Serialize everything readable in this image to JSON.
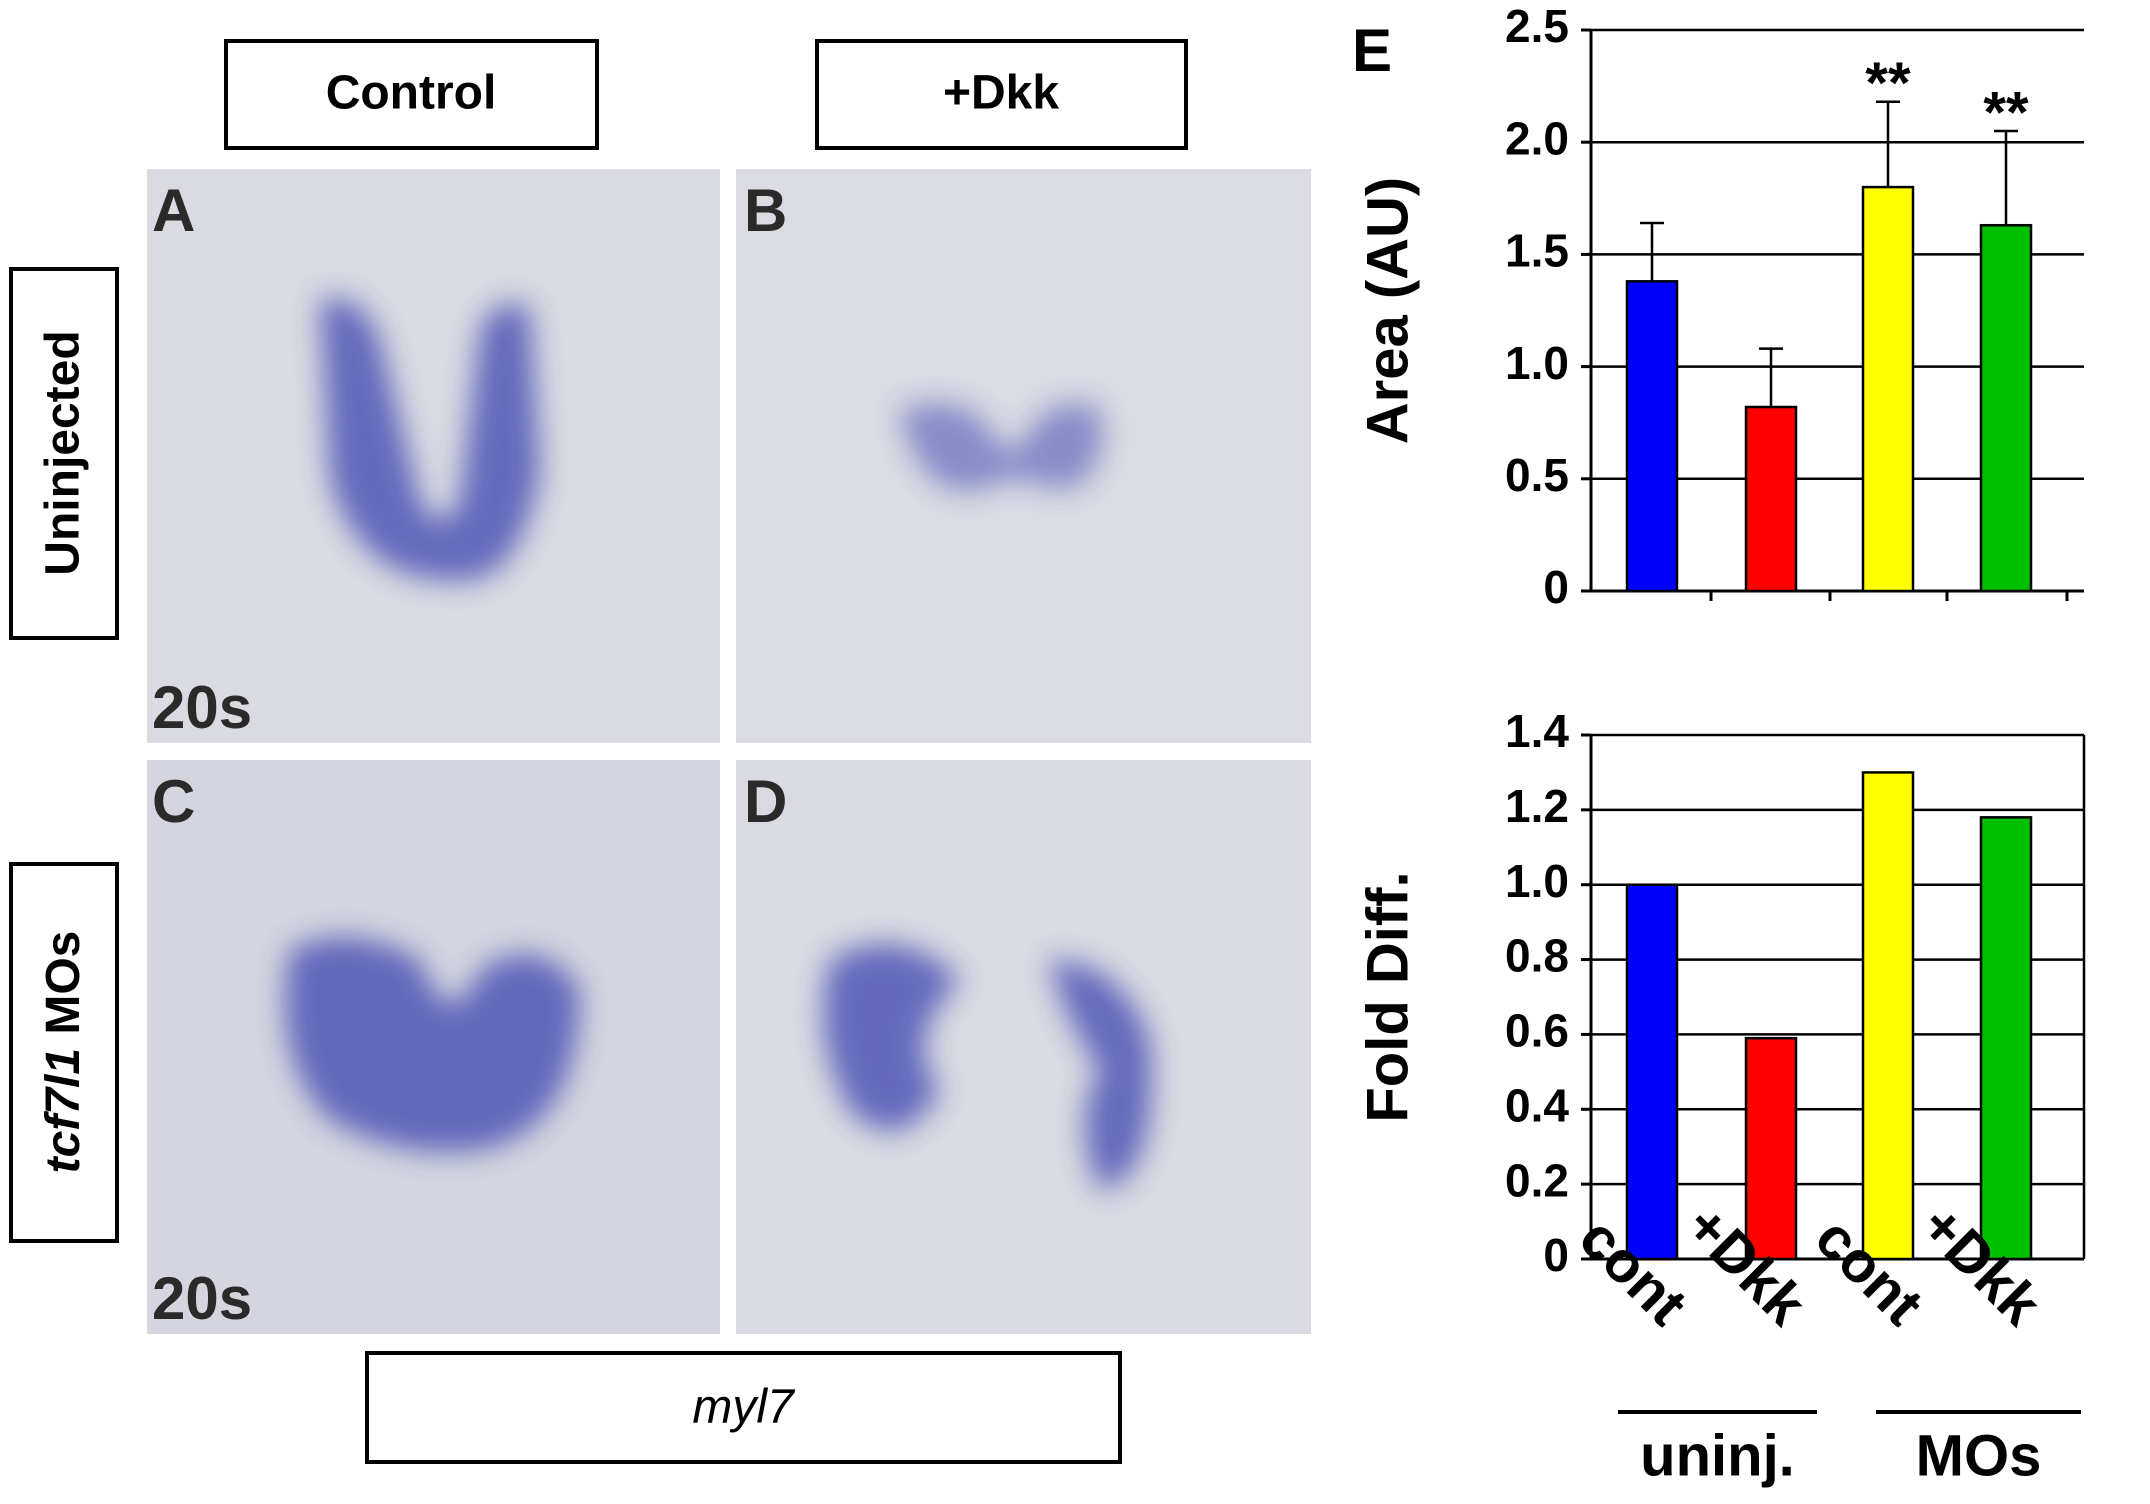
{
  "columns": [
    "Control",
    "+Dkk"
  ],
  "rows": [
    {
      "text": "Uninjected"
    },
    {
      "gene": "tcf7l1",
      "suffix": "MOs"
    }
  ],
  "panels": [
    {
      "letter": "A",
      "stage": "20s"
    },
    {
      "letter": "B"
    },
    {
      "letter": "C",
      "stage": "20s"
    },
    {
      "letter": "D"
    }
  ],
  "probe": "myl7",
  "panel_e": "E",
  "chart_data": [
    {
      "type": "bar",
      "y_label": "Area (AU)",
      "values": [
        1.38,
        0.82,
        1.8,
        1.63
      ],
      "errors": [
        0.26,
        0.26,
        0.38,
        0.42
      ],
      "colors": [
        "#0000ff",
        "#ff0000",
        "#ffff00",
        "#00c000"
      ],
      "annotations": [
        null,
        null,
        "**",
        "**"
      ],
      "ylim": [
        0,
        2.5
      ],
      "yticks": [
        0,
        0.5,
        {
          "value": 1,
          "label": "1.0"
        },
        1.5,
        {
          "value": 2,
          "label": "2.0"
        },
        2.5
      ],
      "grid": true
    },
    {
      "type": "bar",
      "y_label": "Fold Diff.",
      "categories": [
        "cont",
        "+Dkk",
        "cont",
        "+Dkk"
      ],
      "groups": [
        "uninj.",
        "MOs"
      ],
      "values": [
        1.0,
        0.59,
        1.3,
        1.18
      ],
      "colors": [
        "#0000ff",
        "#ff0000",
        "#ffff00",
        "#00c000"
      ],
      "ylim": [
        0,
        1.4
      ],
      "yticks": [
        0,
        0.2,
        0.4,
        0.6,
        0.8,
        {
          "value": 1,
          "label": "1.0"
        },
        1.2,
        1.4
      ],
      "grid": true
    }
  ]
}
